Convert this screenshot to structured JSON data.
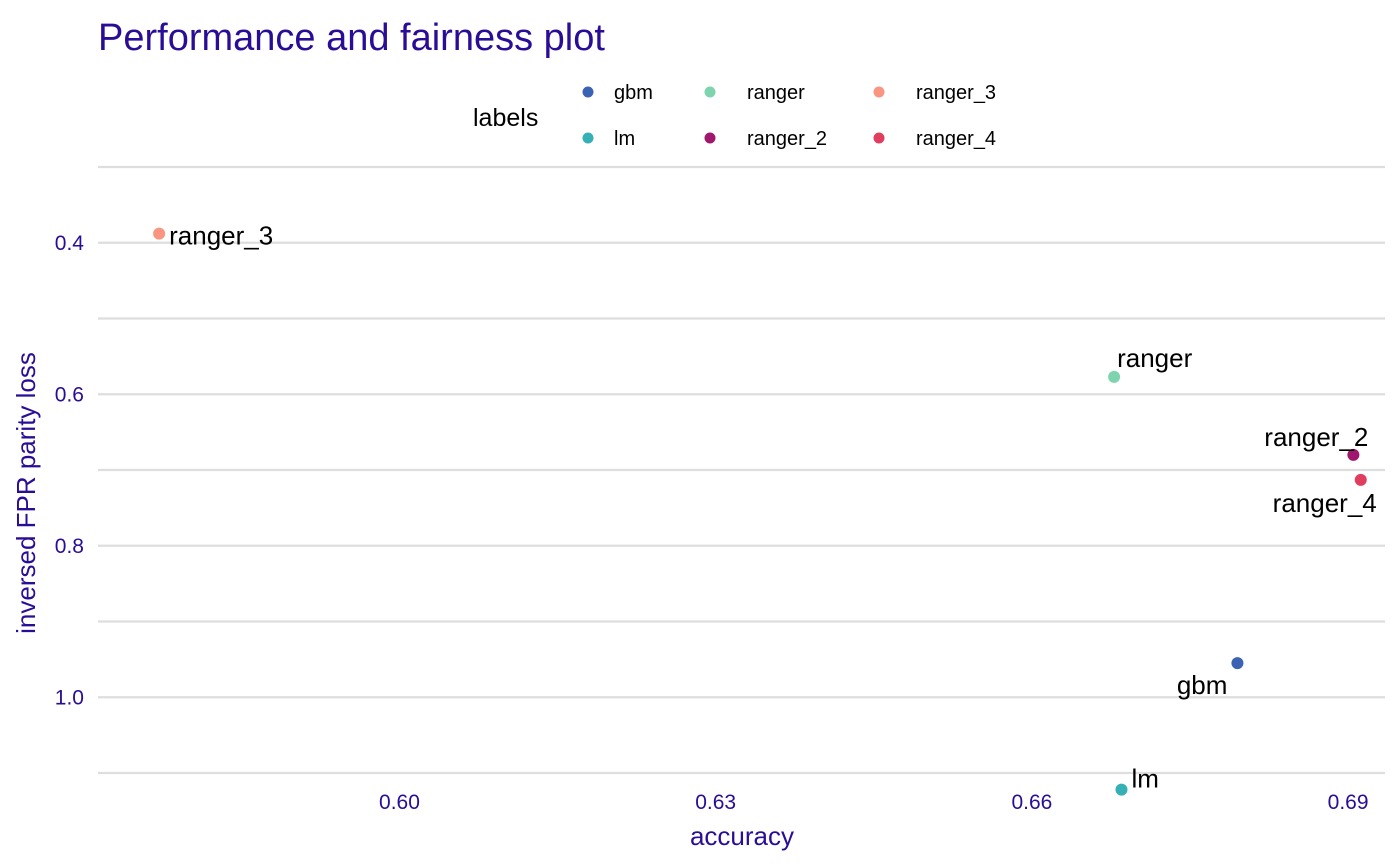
{
  "chart_data": {
    "type": "scatter",
    "title": "Performance and fairness plot",
    "xlabel": "accuracy",
    "ylabel": "inversed FPR parity loss",
    "y_reversed": true,
    "xlim": [
      0.5714,
      0.6935
    ],
    "ylim": [
      0.3,
      1.1
    ],
    "x_ticks": [
      0.6,
      0.63,
      0.66,
      0.69
    ],
    "x_tick_labels": [
      "0.60",
      "0.63",
      "0.66",
      "0.69"
    ],
    "y_ticks": [
      0.4,
      0.6,
      0.8,
      1.0
    ],
    "y_tick_labels": [
      "0.4",
      "0.6",
      "0.8",
      "1.0"
    ],
    "grid": "horizontal",
    "legend": {
      "title": "labels",
      "position": "top",
      "entries": [
        {
          "name": "gbm",
          "color": "#3a63b3"
        },
        {
          "name": "lm",
          "color": "#35b1b6"
        },
        {
          "name": "ranger",
          "color": "#7dd4ae"
        },
        {
          "name": "ranger_2",
          "color": "#a0176e"
        },
        {
          "name": "ranger_3",
          "color": "#f99580"
        },
        {
          "name": "ranger_4",
          "color": "#e13d5e"
        }
      ]
    },
    "points": [
      {
        "label": "ranger_3",
        "x": 0.5772,
        "y": 0.388,
        "color": "#f99580",
        "label_pos": "right"
      },
      {
        "label": "ranger",
        "x": 0.6678,
        "y": 0.577,
        "color": "#7dd4ae",
        "label_pos": "top-right"
      },
      {
        "label": "ranger_2",
        "x": 0.6905,
        "y": 0.68,
        "color": "#a0176e",
        "label_pos": "top-left"
      },
      {
        "label": "ranger_4",
        "x": 0.6912,
        "y": 0.713,
        "color": "#e13d5e",
        "label_pos": "bottom-left"
      },
      {
        "label": "gbm",
        "x": 0.6795,
        "y": 0.955,
        "color": "#3a63b3",
        "label_pos": "bottom-left"
      },
      {
        "label": "lm",
        "x": 0.6685,
        "y": 1.122,
        "color": "#35b1b6",
        "label_pos": "top-right"
      }
    ]
  }
}
